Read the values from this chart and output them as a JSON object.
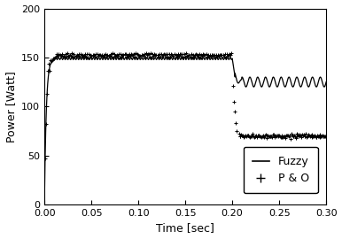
{
  "xlabel": "Time [sec]",
  "ylabel": "Power [Watt]",
  "xlim": [
    0,
    0.3
  ],
  "ylim": [
    0,
    200
  ],
  "xticks": [
    0,
    0.05,
    0.1,
    0.15,
    0.2,
    0.25,
    0.3
  ],
  "yticks": [
    0,
    50,
    100,
    150,
    200
  ],
  "fuzzy_color": "#000000",
  "po_color": "#000000",
  "legend_labels": [
    "Fuzzy",
    "P & O"
  ],
  "transition_time": 0.2,
  "fuzzy_level1": 149,
  "fuzzy_level2": 125,
  "po_level1": 150,
  "po_level2": 70,
  "rise_time": 0.012,
  "fuzzy_osc_amp1": 1.2,
  "fuzzy_osc_freq1": 350,
  "fuzzy_osc_amp2": 5.0,
  "fuzzy_osc_freq2": 120,
  "po_osc_amp1": 3.5,
  "po_osc_freq1": 280,
  "po_drop_duration": 0.015
}
